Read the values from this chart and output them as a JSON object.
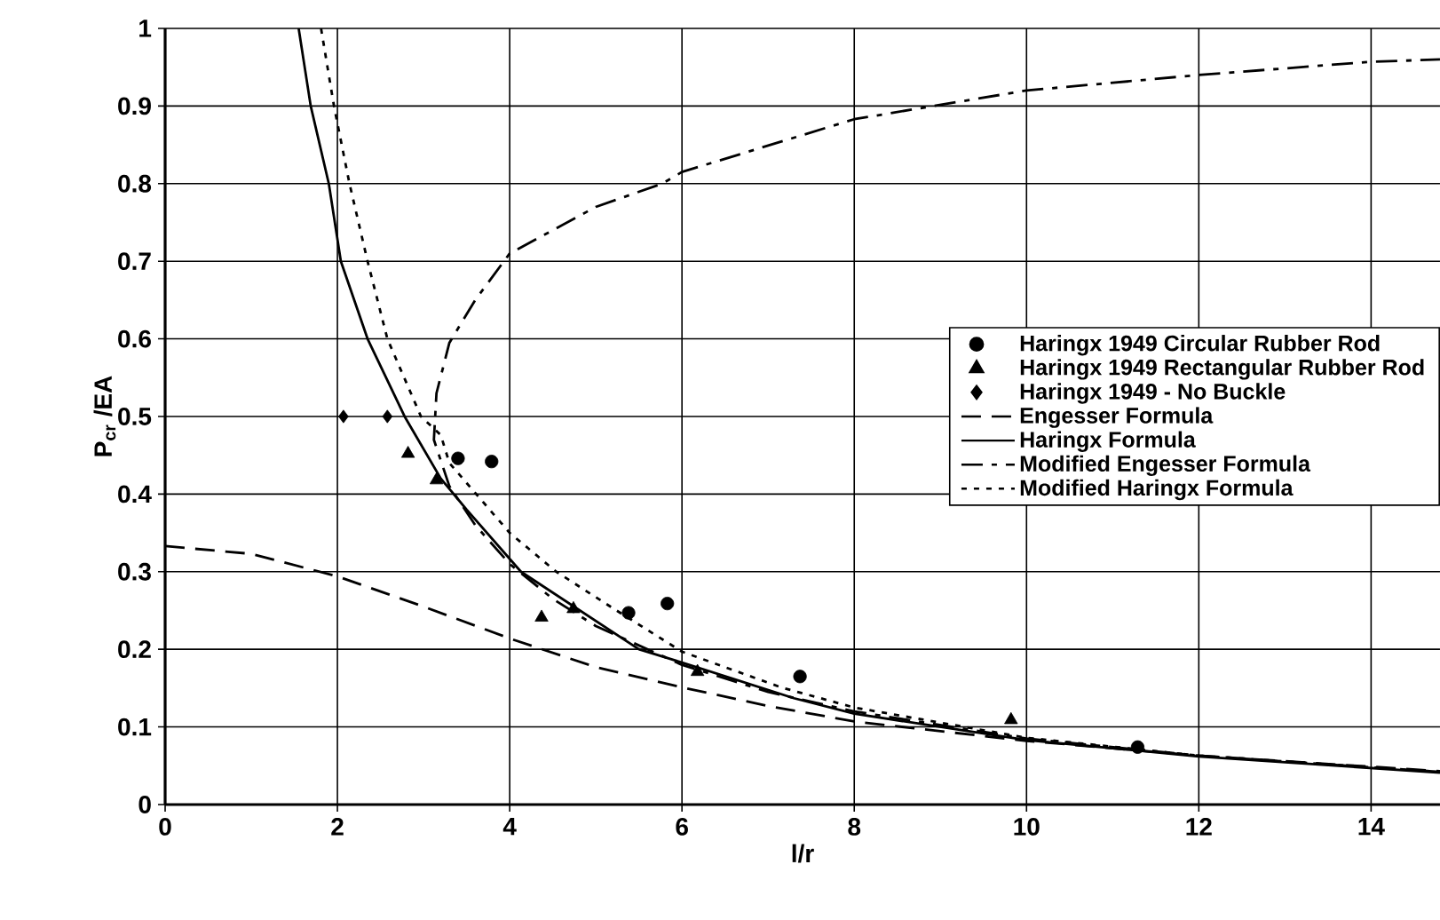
{
  "chart_data": {
    "type": "scatter",
    "xlabel": "l/r",
    "ylabel": "P$_{cr}$ /EA",
    "xlim": [
      0,
      14.8
    ],
    "ylim": [
      0,
      1
    ],
    "xticks": [
      0,
      2,
      4,
      6,
      8,
      10,
      12,
      14
    ],
    "yticks": [
      0,
      0.1,
      0.2,
      0.3,
      0.4,
      0.5,
      0.6,
      0.7,
      0.8,
      0.9,
      1
    ],
    "grid": true,
    "legend": "right",
    "series": [
      {
        "name": "Haringx 1949 Circular Rubber Rod",
        "marker": "circle",
        "color": "#000000",
        "x": [
          3.4,
          3.79,
          5.38,
          5.83,
          7.37,
          11.29
        ],
        "values": [
          0.446,
          0.442,
          0.247,
          0.259,
          0.165,
          0.074
        ]
      },
      {
        "name": "Haringx 1949 Rectangular Rubber Rod",
        "marker": "triangle",
        "color": "#000000",
        "x": [
          2.82,
          3.15,
          4.37,
          4.74,
          6.18,
          9.82
        ],
        "values": [
          0.452,
          0.418,
          0.241,
          0.252,
          0.171,
          0.109
        ]
      },
      {
        "name": "Haringx 1949 - No Buckle",
        "marker": "diamond",
        "color": "#000000",
        "x": [
          2.07,
          2.58
        ],
        "values": [
          0.5,
          0.5
        ]
      },
      {
        "name": "Engesser Formula",
        "type": "line",
        "line_style": "dashed",
        "color": "#000000",
        "x": [
          0,
          1,
          2,
          3,
          4,
          5,
          6,
          7,
          8,
          10,
          12,
          14.8
        ],
        "values": [
          0.333,
          0.323,
          0.294,
          0.255,
          0.214,
          0.177,
          0.151,
          0.127,
          0.107,
          0.082,
          0.063,
          0.043
        ]
      },
      {
        "name": "Haringx Formula",
        "type": "line",
        "line_style": "solid",
        "color": "#000000",
        "x": [
          1.55,
          1.69,
          1.9,
          2.04,
          2.35,
          2.78,
          3.2,
          3.5,
          4.13,
          5.5,
          6,
          7.3,
          8,
          10,
          12,
          14.8
        ],
        "values": [
          1,
          0.9,
          0.8,
          0.7,
          0.6,
          0.5,
          0.42,
          0.38,
          0.3,
          0.2,
          0.183,
          0.137,
          0.117,
          0.083,
          0.062,
          0.041
        ]
      },
      {
        "name": "Modified Engesser Formula",
        "type": "line",
        "line_style": "dashdot",
        "color": "#000000",
        "x": [
          14.8,
          12,
          10,
          8,
          7,
          6,
          5,
          4.5,
          4,
          3.6,
          3.3,
          3.12,
          3.15,
          3.3,
          3.6,
          4,
          5,
          5.77,
          6,
          8,
          10,
          12,
          14,
          14.8
        ],
        "values": [
          0.042,
          0.063,
          0.085,
          0.12,
          0.145,
          0.18,
          0.23,
          0.265,
          0.31,
          0.36,
          0.41,
          0.47,
          0.53,
          0.595,
          0.65,
          0.71,
          0.77,
          0.8,
          0.815,
          0.883,
          0.92,
          0.94,
          0.957,
          0.96
        ]
      },
      {
        "name": "Modified Haringx Formula",
        "type": "line",
        "line_style": "dotted",
        "color": "#000000",
        "x": [
          1.81,
          1.96,
          2.14,
          2.35,
          2.58,
          2.97,
          3.2,
          3.3,
          4.0,
          4.54,
          5.24,
          6,
          7.15,
          8,
          10,
          12,
          14.8
        ],
        "values": [
          1,
          0.9,
          0.8,
          0.7,
          0.6,
          0.5,
          0.476,
          0.44,
          0.35,
          0.3,
          0.25,
          0.197,
          0.151,
          0.125,
          0.086,
          0.063,
          0.042
        ]
      }
    ]
  }
}
